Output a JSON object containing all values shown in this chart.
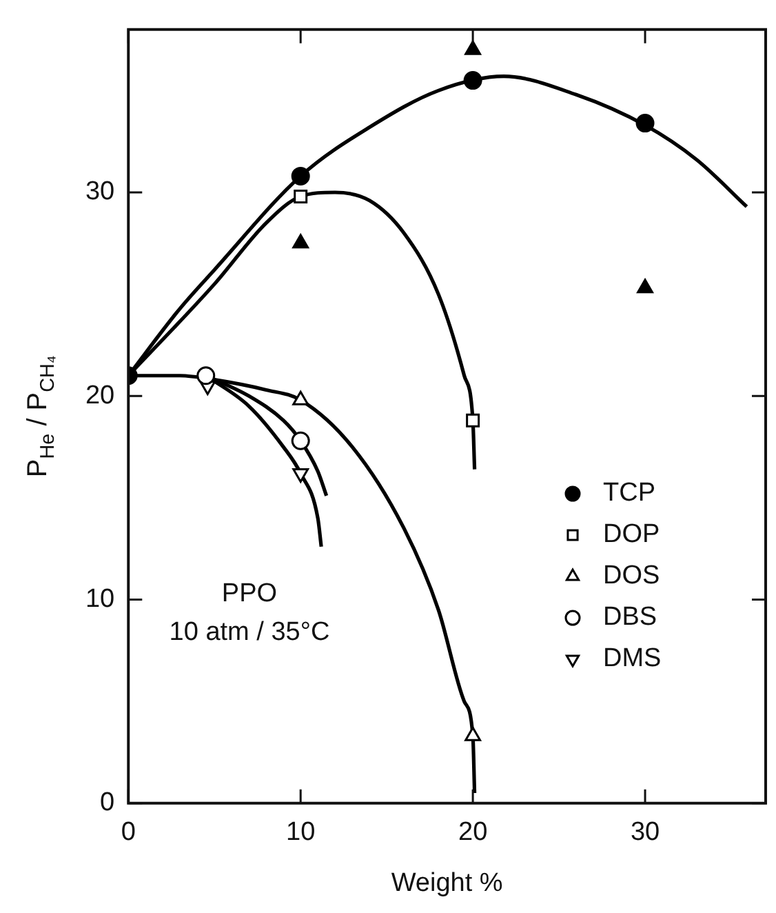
{
  "chart_data": {
    "type": "scatter",
    "xlabel": "Weight %",
    "ylabel": "P$_{He}$ / P$_{CH₄}$",
    "xlim": [
      0,
      37
    ],
    "ylim": [
      0,
      38
    ],
    "xticks": [
      0,
      10,
      20,
      30
    ],
    "yticks": [
      0,
      10,
      20,
      30
    ],
    "grid": false,
    "legend": "right",
    "annotations": [
      "PPO",
      "10 atm / 35°C"
    ],
    "series": [
      {
        "type": "line",
        "color": "#000000",
        "marker": "none",
        "x": [
          0,
          3,
          5,
          10,
          14,
          18,
          21.8,
          26,
          30,
          33,
          35.9
        ],
        "values": [
          21,
          24.3,
          26.2,
          30.8,
          33.2,
          35,
          35.7,
          34.8,
          33.3,
          31.6,
          29.3
        ]
      },
      {
        "type": "line",
        "color": "#000000",
        "marker": "none",
        "x": [
          0,
          5,
          8,
          10,
          12,
          14,
          16,
          18,
          19.5,
          20,
          20.1
        ],
        "values": [
          21,
          25.5,
          28.5,
          29.8,
          30,
          29.6,
          28,
          25,
          21,
          18.8,
          16.4
        ]
      },
      {
        "type": "line",
        "color": "#000000",
        "marker": "none",
        "x": [
          0,
          3,
          5,
          8,
          10,
          13,
          16,
          18,
          19.5,
          20,
          20.1
        ],
        "values": [
          21,
          21,
          20.8,
          20.3,
          19.8,
          17.5,
          13.5,
          9.5,
          5,
          3.3,
          0.5
        ]
      },
      {
        "type": "line",
        "color": "#000000",
        "marker": "none",
        "x": [
          4.5,
          7,
          9,
          10,
          11,
          11.5
        ],
        "values": [
          21,
          20,
          18.8,
          17.8,
          16.3,
          15.1
        ]
      },
      {
        "type": "line",
        "color": "#000000",
        "marker": "none",
        "x": [
          4.5,
          7,
          9,
          10,
          11,
          11.2
        ],
        "values": [
          21,
          19.5,
          17.5,
          16.2,
          14,
          12.6
        ]
      },
      {
        "name": "TCP",
        "color": "#000000",
        "marker": "circle",
        "x": [
          0,
          10,
          20,
          30
        ],
        "values": [
          21,
          30.8,
          35.5,
          33.4
        ]
      },
      {
        "color": "#000000",
        "marker": "triangle",
        "x": [
          10,
          20,
          30
        ],
        "values": [
          27.5,
          37,
          25.3
        ]
      },
      {
        "name": "DOP",
        "color": "#000000",
        "marker": "square_open",
        "x": [
          10,
          20
        ],
        "values": [
          29.8,
          18.8
        ]
      },
      {
        "name": "DOS",
        "color": "#000000",
        "marker": "triangle_open",
        "x": [
          10,
          20
        ],
        "values": [
          19.8,
          3.3
        ]
      },
      {
        "name": "DBS",
        "color": "#000000",
        "marker": "circle_open",
        "x": [
          4.5,
          10
        ],
        "values": [
          21,
          17.8
        ]
      },
      {
        "name": "DMS",
        "color": "#000000",
        "marker": "triangle_down_open",
        "x": [
          4.6,
          10
        ],
        "values": [
          20.5,
          16.2
        ]
      }
    ]
  }
}
